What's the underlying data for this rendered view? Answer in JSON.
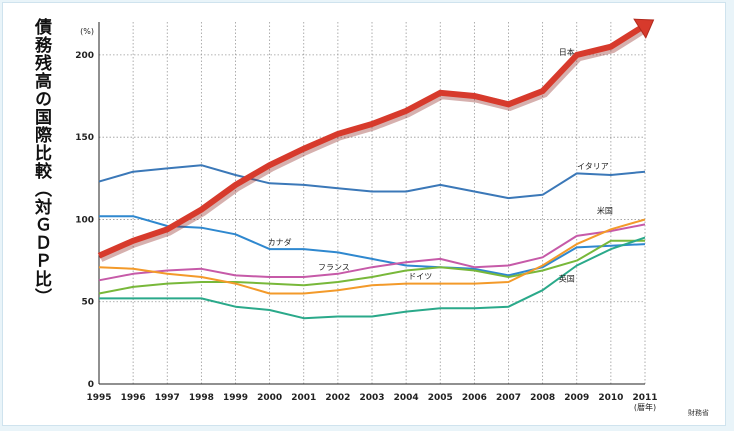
{
  "chart_data": {
    "type": "line",
    "title": "債務残高の国際比較（対ＧＤＰ比）",
    "yunit": "(%)",
    "xunit": "(暦年)",
    "source": "財務省",
    "x": [
      "1995",
      "1996",
      "1997",
      "1998",
      "1999",
      "2000",
      "2001",
      "2002",
      "2003",
      "2004",
      "2005",
      "2006",
      "2007",
      "2008",
      "2009",
      "2010",
      "2011"
    ],
    "ylim": [
      0,
      220
    ],
    "yticks": [
      0,
      50,
      100,
      150,
      200
    ],
    "grid": true,
    "series": [
      {
        "name": "日本",
        "color": "#d73a2c",
        "width": 6,
        "values": [
          78,
          87,
          94,
          106,
          121,
          133,
          143,
          152,
          158,
          166,
          177,
          175,
          170,
          178,
          200,
          205,
          218
        ]
      },
      {
        "name": "イタリア",
        "color": "#3b78b8",
        "width": 2,
        "values": [
          123,
          129,
          131,
          133,
          127,
          122,
          121,
          119,
          117,
          117,
          121,
          117,
          113,
          115,
          128,
          127,
          129
        ]
      },
      {
        "name": "カナダ",
        "color": "#2f88cf",
        "width": 2,
        "values": [
          102,
          102,
          96,
          95,
          91,
          82,
          82,
          80,
          76,
          72,
          71,
          70,
          66,
          71,
          83,
          84,
          85
        ]
      },
      {
        "name": "フランス",
        "color": "#c65aa8",
        "width": 2,
        "values": [
          63,
          67,
          69,
          70,
          66,
          65,
          65,
          67,
          71,
          74,
          76,
          71,
          72,
          77,
          90,
          93,
          97
        ]
      },
      {
        "name": "ドイツ",
        "color": "#78b83a",
        "width": 2,
        "values": [
          55,
          59,
          61,
          62,
          62,
          61,
          60,
          62,
          65,
          69,
          71,
          69,
          65,
          69,
          75,
          87,
          87
        ]
      },
      {
        "name": "米国",
        "color": "#f39a2a",
        "width": 2,
        "values": [
          71,
          70,
          67,
          65,
          61,
          55,
          55,
          57,
          60,
          61,
          61,
          61,
          62,
          72,
          85,
          94,
          100
        ]
      },
      {
        "name": "英国",
        "color": "#2aa98a",
        "width": 2,
        "values": [
          52,
          52,
          52,
          52,
          47,
          45,
          40,
          41,
          41,
          44,
          46,
          46,
          47,
          57,
          72,
          82,
          89
        ]
      }
    ]
  }
}
